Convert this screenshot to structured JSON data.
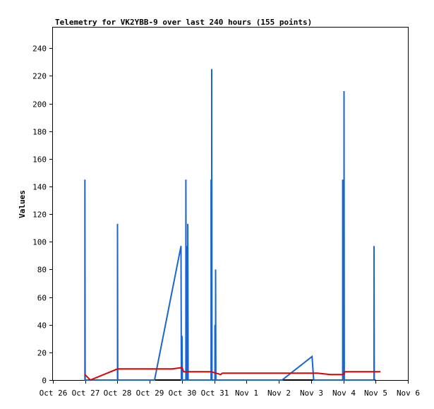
{
  "chart_data": {
    "type": "line",
    "title": "Telemetry for VK2YBB-9 over last 240 hours (155 points)",
    "xlabel": "",
    "ylabel": "Values",
    "xlim": [
      0,
      11
    ],
    "ylim": [
      0,
      255
    ],
    "x_ticks": [
      {
        "x": 0,
        "label": "Oct 26"
      },
      {
        "x": 1,
        "label": "Oct 27"
      },
      {
        "x": 2,
        "label": "Oct 28"
      },
      {
        "x": 3,
        "label": "Oct 29"
      },
      {
        "x": 4,
        "label": "Oct 30"
      },
      {
        "x": 5,
        "label": "Oct 31"
      },
      {
        "x": 6,
        "label": "Nov 1"
      },
      {
        "x": 7,
        "label": "Nov 2"
      },
      {
        "x": 8,
        "label": "Nov 3"
      },
      {
        "x": 9,
        "label": "Nov 4"
      },
      {
        "x": 10,
        "label": "Nov 5"
      },
      {
        "x": 11,
        "label": "Nov 6"
      }
    ],
    "y_ticks": [
      0,
      20,
      40,
      60,
      80,
      100,
      120,
      140,
      160,
      180,
      200,
      220,
      240
    ],
    "grid": false,
    "legend": "none",
    "series": [
      {
        "color": "#000000",
        "points": [
          [
            0.99,
            0
          ],
          [
            10.0,
            0
          ]
        ]
      },
      {
        "color": "#1a66cc",
        "points": [
          [
            0.99,
            0
          ],
          [
            0.99,
            145
          ],
          [
            1.0,
            0
          ],
          [
            2.0,
            0
          ],
          [
            2.0,
            113
          ],
          [
            2.01,
            0
          ],
          [
            3.15,
            0
          ],
          [
            3.97,
            97
          ],
          [
            3.98,
            0
          ],
          [
            4.0,
            0
          ],
          [
            4.0,
            32
          ],
          [
            4.01,
            0
          ],
          [
            4.12,
            0
          ],
          [
            4.12,
            145
          ],
          [
            4.13,
            0
          ],
          [
            4.16,
            0
          ],
          [
            4.16,
            97
          ],
          [
            4.17,
            0
          ],
          [
            4.18,
            0
          ],
          [
            4.18,
            113
          ],
          [
            4.19,
            0
          ],
          [
            4.9,
            0
          ],
          [
            4.9,
            145
          ],
          [
            4.91,
            0
          ],
          [
            4.92,
            0
          ],
          [
            4.92,
            225
          ],
          [
            4.93,
            0
          ],
          [
            5.02,
            0
          ],
          [
            5.02,
            40
          ],
          [
            5.03,
            0
          ],
          [
            5.04,
            0
          ],
          [
            5.04,
            80
          ],
          [
            5.05,
            0
          ],
          [
            7.1,
            0
          ],
          [
            8.03,
            17
          ],
          [
            8.08,
            0
          ],
          [
            8.98,
            0
          ],
          [
            8.98,
            145
          ],
          [
            8.99,
            0
          ],
          [
            9.02,
            0
          ],
          [
            9.02,
            209
          ],
          [
            9.03,
            0
          ],
          [
            9.95,
            0
          ],
          [
            9.95,
            97
          ],
          [
            9.96,
            0
          ]
        ]
      },
      {
        "color": "#e00000",
        "points": [
          [
            0.99,
            4
          ],
          [
            1.16,
            0
          ],
          [
            2.0,
            8
          ],
          [
            3.7,
            8
          ],
          [
            4.0,
            9
          ],
          [
            4.05,
            6
          ],
          [
            4.9,
            6
          ],
          [
            5.2,
            4
          ],
          [
            5.25,
            5
          ],
          [
            8.2,
            5
          ],
          [
            8.6,
            4
          ],
          [
            9.0,
            4
          ],
          [
            9.05,
            6
          ],
          [
            10.15,
            6
          ]
        ]
      }
    ]
  }
}
